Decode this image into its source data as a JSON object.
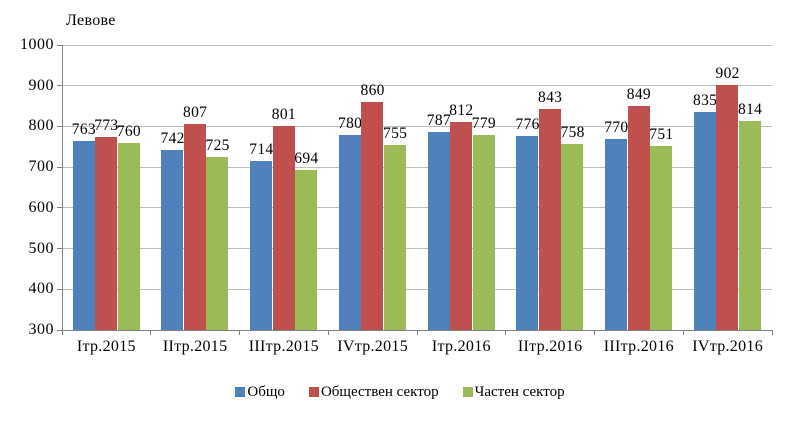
{
  "chart_data": {
    "type": "bar",
    "title": "",
    "ylabel": "Левове",
    "xlabel": "",
    "categories": [
      "Iтр.2015",
      "IIтр.2015",
      "IIIтр.2015",
      "IVтр.2015",
      "Iтр.2016",
      "IIтр.2016",
      "IIIтр.2016",
      "IVтр.2016"
    ],
    "series": [
      {
        "name": "Общо",
        "color": "#4f81bd",
        "values": [
          763,
          742,
          714,
          780,
          787,
          776,
          770,
          835
        ]
      },
      {
        "name": "Обществен сектор",
        "color": "#c0504d",
        "values": [
          773,
          807,
          801,
          860,
          812,
          843,
          849,
          902
        ]
      },
      {
        "name": "Частен сектор",
        "color": "#9bbb59",
        "values": [
          760,
          725,
          694,
          755,
          779,
          758,
          751,
          814
        ]
      }
    ],
    "ylim": [
      300,
      1000
    ],
    "ytick_step": 100,
    "grid": true,
    "legend_position": "bottom",
    "gridline_color": "#bfbfbf",
    "axis_color": "#808080",
    "data_labels": true
  }
}
